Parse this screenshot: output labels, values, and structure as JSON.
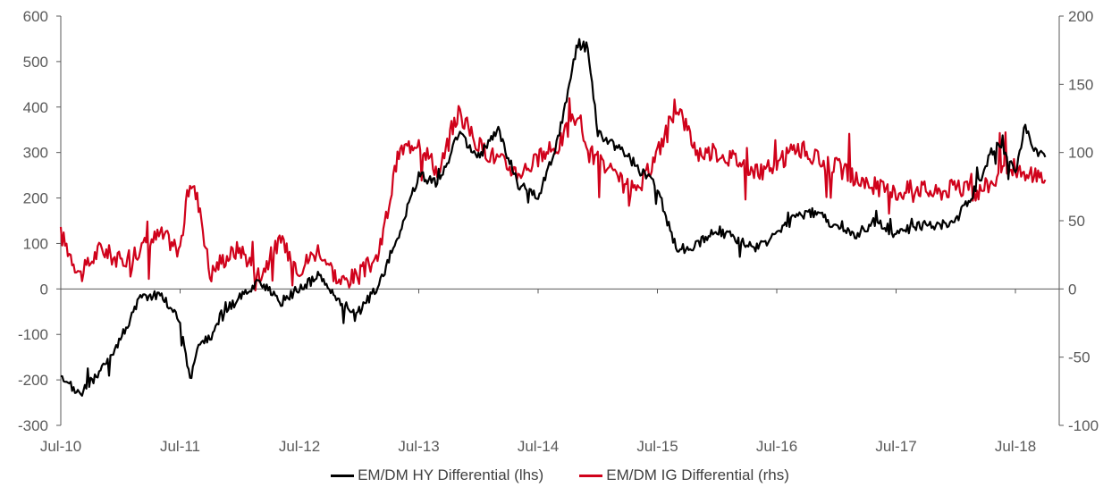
{
  "colors": {
    "hy": "#000000",
    "ig": "#d0021b",
    "axis": "#595959"
  },
  "chart_data": {
    "type": "line",
    "x_tick_labels": [
      "Jul-10",
      "Jul-11",
      "Jul-12",
      "Jul-13",
      "Jul-14",
      "Jul-15",
      "Jul-16",
      "Jul-17",
      "Jul-18"
    ],
    "y_left": {
      "ticks": [
        "600",
        "500",
        "400",
        "300",
        "200",
        "100",
        "0",
        "-100",
        "-200",
        "-300"
      ],
      "range": [
        -300,
        600
      ]
    },
    "y_right": {
      "ticks": [
        "200",
        "150",
        "100",
        "50",
        "0",
        "-50",
        "-100"
      ],
      "range": [
        -100,
        200
      ]
    },
    "legend_position": "bottom",
    "series": [
      {
        "name": "EM/DM HY Differential (lhs)",
        "axis": "left",
        "x": [
          "Jul-10",
          "Sep-10",
          "Nov-10",
          "Jan-11",
          "Mar-11",
          "May-11",
          "Jul-11",
          "Aug-11",
          "Sep-11",
          "Oct-11",
          "Nov-11",
          "Jan-12",
          "Mar-12",
          "May-12",
          "Jul-12",
          "Sep-12",
          "Nov-12",
          "Jan-13",
          "Mar-13",
          "May-13",
          "Jul-13",
          "Sep-13",
          "Nov-13",
          "Jan-14",
          "Mar-14",
          "May-14",
          "Jul-14",
          "Sep-14",
          "Nov-14",
          "Dec-14",
          "Jan-15",
          "Mar-15",
          "May-15",
          "Jul-15",
          "Sep-15",
          "Nov-15",
          "Jan-16",
          "Mar-16",
          "May-16",
          "Jul-16",
          "Sep-16",
          "Nov-16",
          "Jan-17",
          "Mar-17",
          "May-17",
          "Jul-17",
          "Sep-17",
          "Nov-17",
          "Jan-18",
          "Mar-18",
          "May-18",
          "Jul-18",
          "Aug-18",
          "Sep-18",
          "Oct-18"
        ],
        "values": [
          -200,
          -230,
          -180,
          -110,
          -20,
          -10,
          -70,
          -200,
          -120,
          -110,
          -60,
          -20,
          20,
          -30,
          0,
          30,
          -30,
          -50,
          10,
          120,
          250,
          230,
          340,
          290,
          350,
          230,
          200,
          330,
          540,
          530,
          340,
          310,
          270,
          220,
          80,
          100,
          130,
          110,
          90,
          120,
          160,
          170,
          130,
          120,
          150,
          120,
          140,
          140,
          150,
          220,
          320,
          260,
          360,
          300,
          290
        ]
      },
      {
        "name": "EM/DM IG Differential (rhs)",
        "axis": "right",
        "x": [
          "Jul-10",
          "Sep-10",
          "Nov-10",
          "Jan-11",
          "Mar-11",
          "May-11",
          "Jul-11",
          "Aug-11",
          "Sep-11",
          "Oct-11",
          "Nov-11",
          "Jan-12",
          "Mar-12",
          "May-12",
          "Jul-12",
          "Sep-12",
          "Nov-12",
          "Jan-13",
          "Mar-13",
          "May-13",
          "Jul-13",
          "Sep-13",
          "Nov-13",
          "Jan-14",
          "Mar-14",
          "May-14",
          "Jul-14",
          "Sep-14",
          "Nov-14",
          "Dec-14",
          "Jan-15",
          "Mar-15",
          "May-15",
          "Jul-15",
          "Sep-15",
          "Nov-15",
          "Jan-16",
          "Mar-16",
          "May-16",
          "Jul-16",
          "Sep-16",
          "Nov-16",
          "Jan-17",
          "Mar-17",
          "May-17",
          "Jul-17",
          "Sep-17",
          "Nov-17",
          "Jan-18",
          "Mar-18",
          "May-18",
          "Jul-18",
          "Aug-18",
          "Sep-18",
          "Oct-18"
        ],
        "values": [
          40,
          10,
          30,
          20,
          30,
          40,
          30,
          80,
          60,
          10,
          20,
          30,
          10,
          35,
          15,
          30,
          5,
          10,
          25,
          100,
          110,
          85,
          130,
          105,
          95,
          85,
          95,
          105,
          130,
          100,
          95,
          80,
          70,
          100,
          135,
          100,
          100,
          95,
          85,
          90,
          105,
          95,
          90,
          80,
          75,
          70,
          75,
          70,
          75,
          70,
          80,
          90,
          80,
          85,
          80
        ]
      }
    ]
  }
}
